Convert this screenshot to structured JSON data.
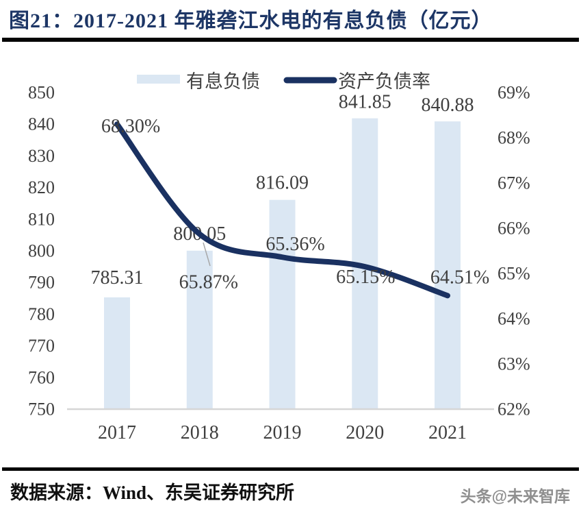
{
  "header": {
    "title": "图21：2017-2021 年雅砻江水电的有息负债（亿元）"
  },
  "footer": {
    "source": "数据来源：Wind、东吴证券研究所",
    "watermark": "头条@未来智库"
  },
  "colors": {
    "bar_fill": "#dbe7f3",
    "line": "#1a3161",
    "title": "#1d3666",
    "label_text": "#3f3f3f",
    "baseline": "#d6d6d6",
    "leader": "#a8a8a8",
    "rule": "#050505"
  },
  "chart_data": {
    "type": "bar",
    "subtype": "combo-bar-line-dual-axis",
    "title": "图21：2017-2021 年雅砻江水电的有息负债（亿元）",
    "categories": [
      "2017",
      "2018",
      "2019",
      "2020",
      "2021"
    ],
    "series": [
      {
        "name": "有息负债",
        "type": "bar",
        "axis": "left",
        "values": [
          785.31,
          800.05,
          816.09,
          841.85,
          840.88
        ],
        "labels": [
          "785.31",
          "800.05",
          "816.09",
          "841.85",
          "840.88"
        ],
        "color": "#dbe7f3"
      },
      {
        "name": "资产负债率",
        "type": "line",
        "axis": "right",
        "values": [
          68.3,
          65.87,
          65.36,
          65.15,
          64.51
        ],
        "labels": [
          "68.30%",
          "65.87%",
          "65.36%",
          "65.15%",
          "64.51%"
        ],
        "color": "#1a3161"
      }
    ],
    "left_axis": {
      "min": 750,
      "max": 850,
      "step": 10,
      "ticks": [
        "850",
        "840",
        "830",
        "820",
        "810",
        "800",
        "790",
        "780",
        "770",
        "760",
        "750"
      ]
    },
    "right_axis": {
      "min": 62,
      "max": 69,
      "step": 1,
      "ticks": [
        "69%",
        "68%",
        "67%",
        "66%",
        "65%",
        "64%",
        "63%",
        "62%"
      ]
    },
    "legend_position": "top",
    "grid": false
  }
}
